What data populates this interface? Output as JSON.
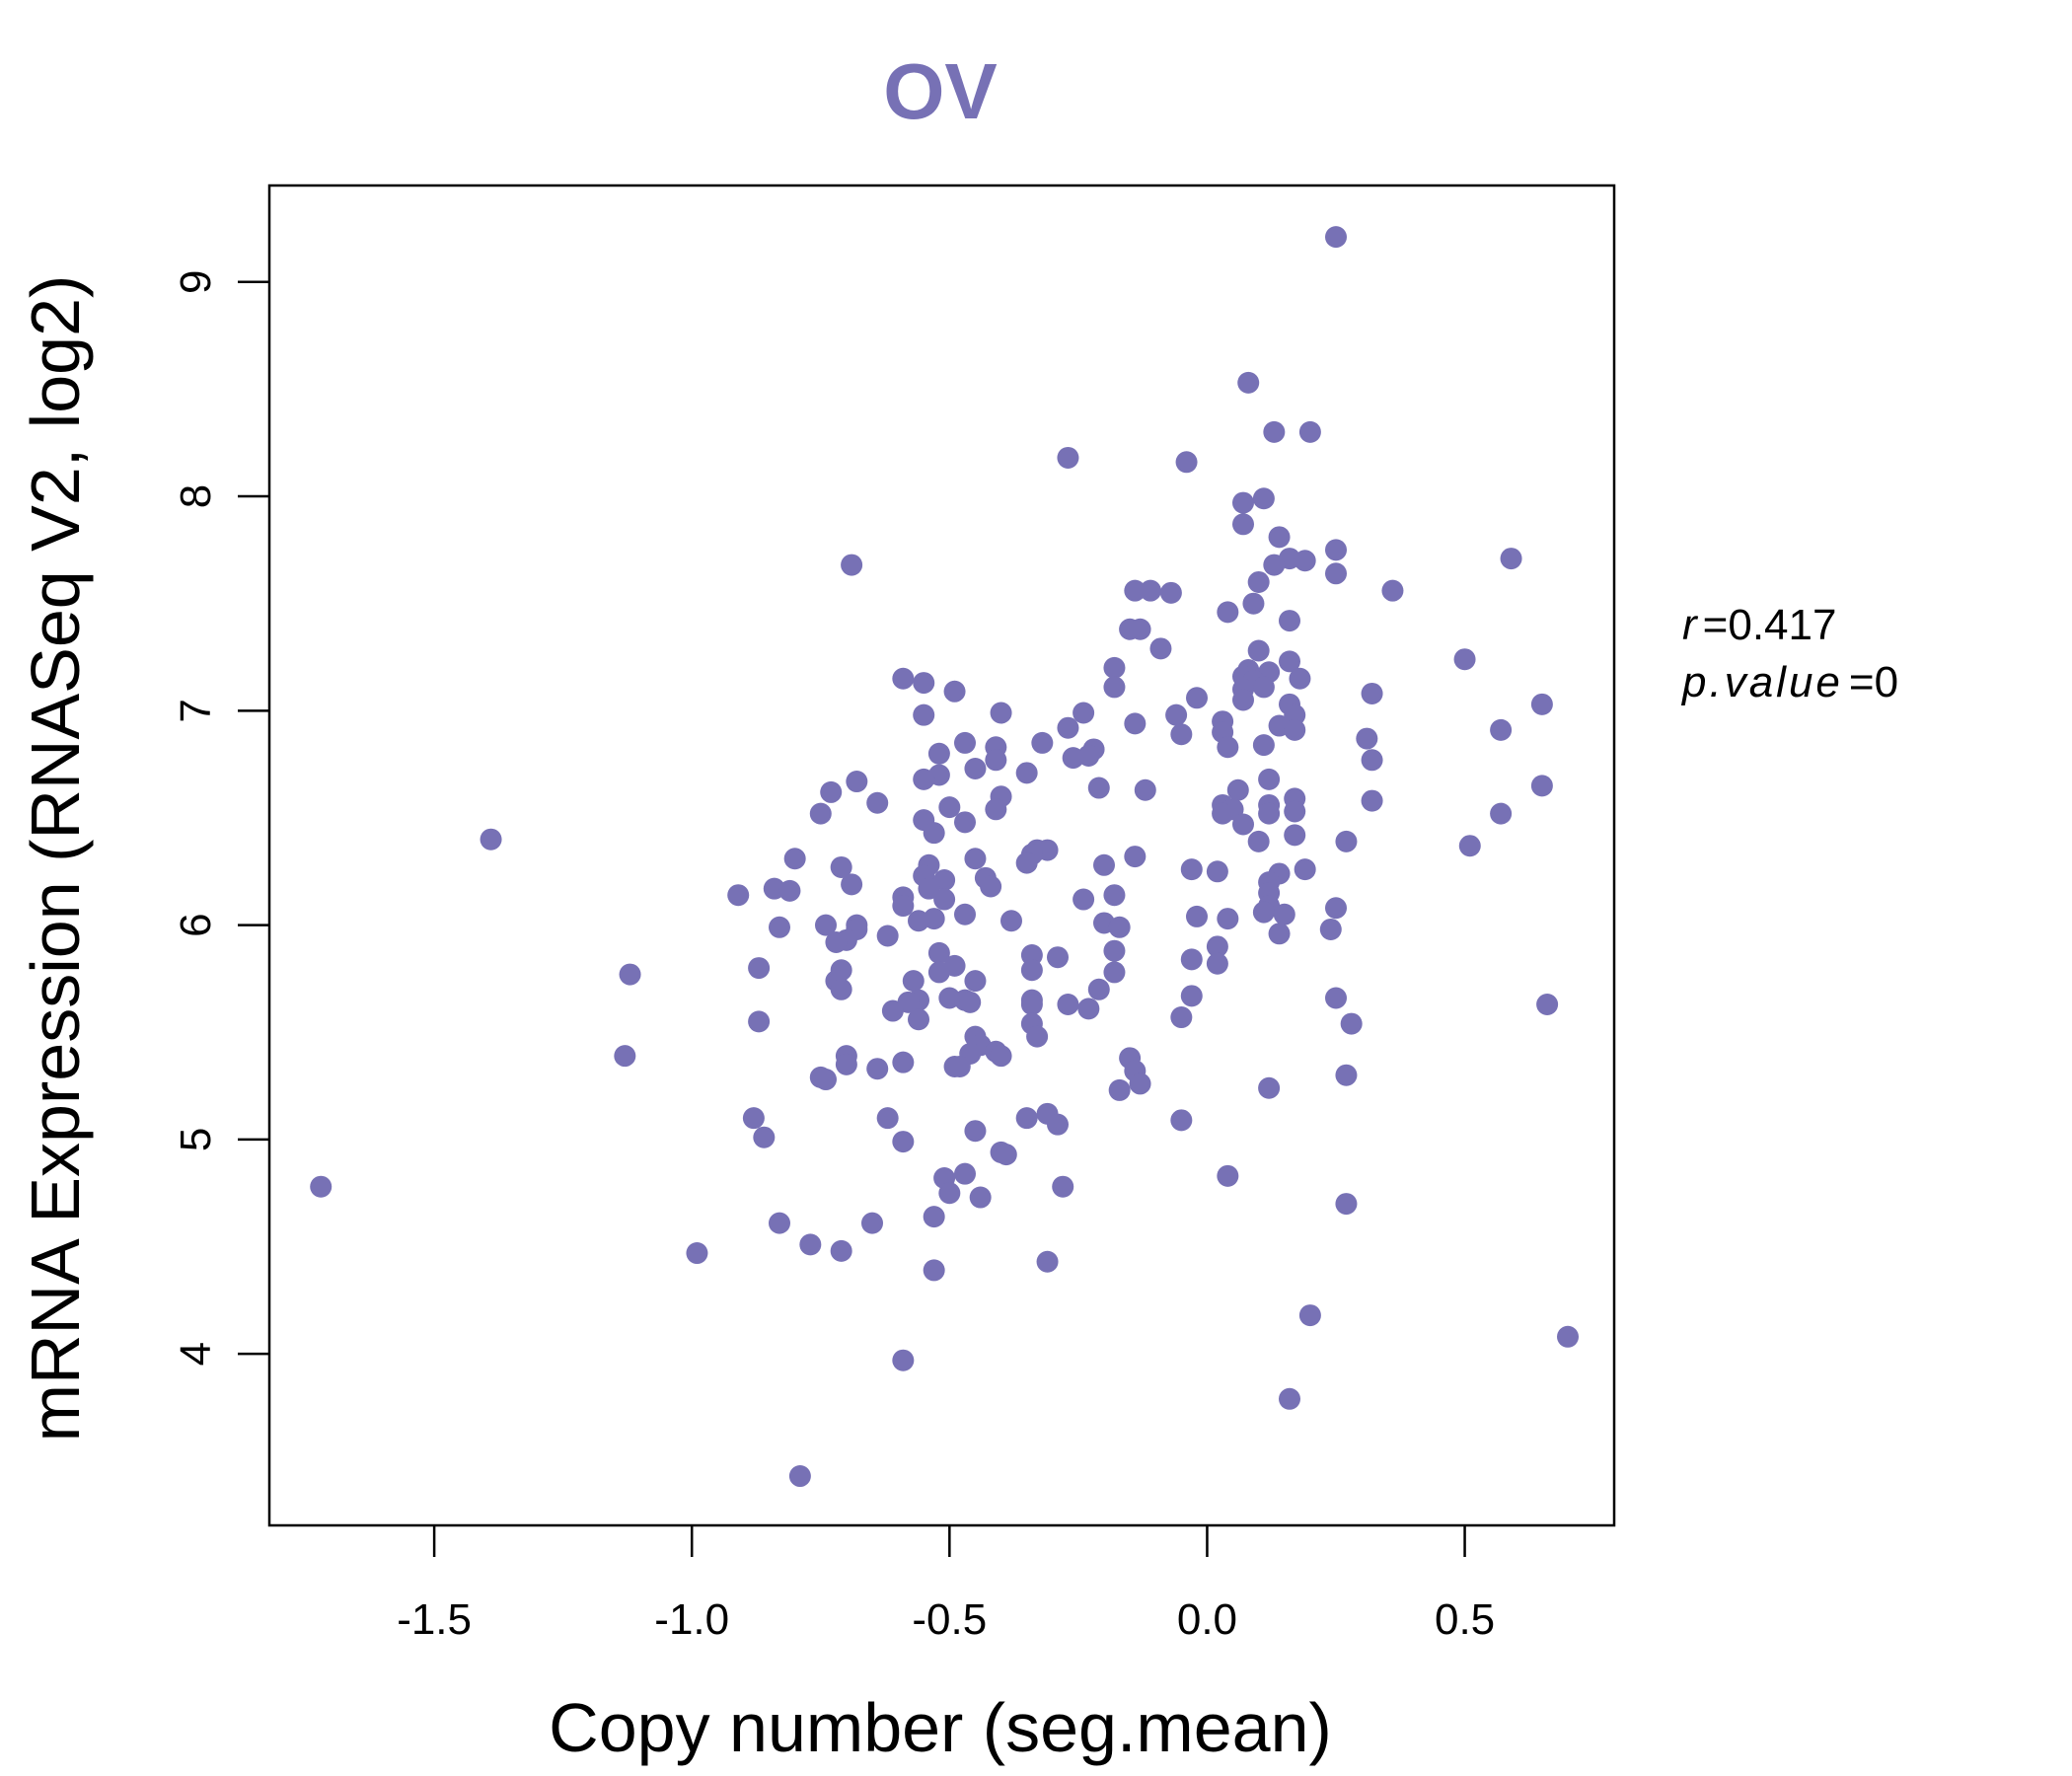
{
  "colors": {
    "accent": "#7771B5",
    "axis": "#000000",
    "background": "#ffffff"
  },
  "chart_data": {
    "type": "scatter",
    "title": "OV",
    "xlabel": "Copy number (seg.mean)",
    "ylabel": "mRNA Expression (RNASeq V2, log2)",
    "xlim": [
      -1.82,
      0.79
    ],
    "ylim": [
      3.2,
      9.45
    ],
    "x_ticks": [
      -1.5,
      -1.0,
      -0.5,
      0.0,
      0.5
    ],
    "x_tick_labels": [
      "-1.5",
      "-1.0",
      "-0.5",
      "0.0",
      "0.5"
    ],
    "y_ticks": [
      4,
      5,
      6,
      7,
      8,
      9
    ],
    "y_tick_labels": [
      "4",
      "5",
      "6",
      "7",
      "8",
      "9"
    ],
    "grid": false,
    "stats": {
      "r_label": "r",
      "r_value": "0.417",
      "p_label": "p.value",
      "p_value": "0"
    },
    "series": [
      {
        "points": [
          [
            0.25,
            9.21
          ],
          [
            0.08,
            8.53
          ],
          [
            0.13,
            8.3
          ],
          [
            0.2,
            8.3
          ],
          [
            -0.27,
            8.18
          ],
          [
            -0.04,
            8.16
          ],
          [
            0.11,
            7.99
          ],
          [
            0.07,
            7.97
          ],
          [
            0.07,
            7.87
          ],
          [
            0.14,
            7.81
          ],
          [
            0.25,
            7.75
          ],
          [
            0.16,
            7.71
          ],
          [
            0.19,
            7.7
          ],
          [
            0.59,
            7.71
          ],
          [
            -0.69,
            7.68
          ],
          [
            0.13,
            7.68
          ],
          [
            0.25,
            7.64
          ],
          [
            0.1,
            7.6
          ],
          [
            0.36,
            7.56
          ],
          [
            -0.14,
            7.56
          ],
          [
            -0.11,
            7.56
          ],
          [
            -0.07,
            7.55
          ],
          [
            0.09,
            7.5
          ],
          [
            0.04,
            7.46
          ],
          [
            0.16,
            7.42
          ],
          [
            -0.15,
            7.38
          ],
          [
            -0.13,
            7.38
          ],
          [
            -0.09,
            7.29
          ],
          [
            0.1,
            7.28
          ],
          [
            0.16,
            7.23
          ],
          [
            0.5,
            7.24
          ],
          [
            0.08,
            7.19
          ],
          [
            -0.18,
            7.2
          ],
          [
            0.12,
            7.18
          ],
          [
            0.07,
            7.16
          ],
          [
            0.18,
            7.15
          ],
          [
            -0.59,
            7.15
          ],
          [
            -0.55,
            7.13
          ],
          [
            0.09,
            7.14
          ],
          [
            -0.18,
            7.11
          ],
          [
            0.11,
            7.11
          ],
          [
            -0.49,
            7.09
          ],
          [
            0.07,
            7.1
          ],
          [
            0.32,
            7.08
          ],
          [
            -0.02,
            7.06
          ],
          [
            0.07,
            7.05
          ],
          [
            0.65,
            7.03
          ],
          [
            0.16,
            7.03
          ],
          [
            -0.24,
            6.99
          ],
          [
            -0.4,
            6.99
          ],
          [
            -0.55,
            6.98
          ],
          [
            0.17,
            6.98
          ],
          [
            -0.06,
            6.98
          ],
          [
            0.03,
            6.95
          ],
          [
            -0.14,
            6.94
          ],
          [
            0.14,
            6.93
          ],
          [
            -0.27,
            6.92
          ],
          [
            0.57,
            6.91
          ],
          [
            0.17,
            6.91
          ],
          [
            0.03,
            6.9
          ],
          [
            -0.05,
            6.89
          ],
          [
            0.31,
            6.87
          ],
          [
            -0.47,
            6.85
          ],
          [
            -0.32,
            6.85
          ],
          [
            0.11,
            6.84
          ],
          [
            0.04,
            6.83
          ],
          [
            -0.41,
            6.83
          ],
          [
            -0.22,
            6.82
          ],
          [
            -0.52,
            6.8
          ],
          [
            -0.23,
            6.79
          ],
          [
            -0.26,
            6.78
          ],
          [
            0.32,
            6.77
          ],
          [
            -0.41,
            6.77
          ],
          [
            -0.45,
            6.73
          ],
          [
            -0.35,
            6.71
          ],
          [
            -0.52,
            6.7
          ],
          [
            -0.55,
            6.68
          ],
          [
            0.12,
            6.68
          ],
          [
            -0.68,
            6.67
          ],
          [
            -0.21,
            6.64
          ],
          [
            0.06,
            6.63
          ],
          [
            -0.12,
            6.63
          ],
          [
            -0.73,
            6.62
          ],
          [
            0.65,
            6.65
          ],
          [
            0.17,
            6.59
          ],
          [
            -0.4,
            6.6
          ],
          [
            0.32,
            6.58
          ],
          [
            -0.64,
            6.57
          ],
          [
            0.03,
            6.56
          ],
          [
            -0.5,
            6.55
          ],
          [
            0.12,
            6.56
          ],
          [
            -0.41,
            6.54
          ],
          [
            0.05,
            6.54
          ],
          [
            0.17,
            6.53
          ],
          [
            0.57,
            6.52
          ],
          [
            0.12,
            6.52
          ],
          [
            -0.75,
            6.52
          ],
          [
            0.03,
            6.52
          ],
          [
            -0.55,
            6.49
          ],
          [
            -0.47,
            6.48
          ],
          [
            0.07,
            6.47
          ],
          [
            -0.53,
            6.43
          ],
          [
            0.17,
            6.42
          ],
          [
            0.1,
            6.39
          ],
          [
            0.27,
            6.39
          ],
          [
            0.51,
            6.37
          ],
          [
            -0.33,
            6.35
          ],
          [
            -0.31,
            6.35
          ],
          [
            -0.34,
            6.33
          ],
          [
            -0.14,
            6.32
          ],
          [
            -0.45,
            6.31
          ],
          [
            -0.8,
            6.31
          ],
          [
            -0.35,
            6.29
          ],
          [
            -0.2,
            6.28
          ],
          [
            -0.54,
            6.28
          ],
          [
            -0.71,
            6.27
          ],
          [
            0.19,
            6.26
          ],
          [
            -0.03,
            6.26
          ],
          [
            0.02,
            6.25
          ],
          [
            0.14,
            6.24
          ],
          [
            -0.55,
            6.23
          ],
          [
            -0.43,
            6.22
          ],
          [
            -0.51,
            6.21
          ],
          [
            0.12,
            6.2
          ],
          [
            -0.69,
            6.19
          ],
          [
            -0.42,
            6.18
          ],
          [
            -0.54,
            6.17
          ],
          [
            -0.84,
            6.17
          ],
          [
            -0.81,
            6.16
          ],
          [
            0.12,
            6.15
          ],
          [
            -0.18,
            6.14
          ],
          [
            -0.91,
            6.14
          ],
          [
            -0.59,
            6.13
          ],
          [
            -0.51,
            6.12
          ],
          [
            -0.24,
            6.12
          ],
          [
            0.12,
            6.09
          ],
          [
            -0.59,
            6.09
          ],
          [
            0.25,
            6.08
          ],
          [
            0.11,
            6.06
          ],
          [
            0.15,
            6.05
          ],
          [
            -0.47,
            6.05
          ],
          [
            -0.02,
            6.04
          ],
          [
            0.04,
            6.03
          ],
          [
            -0.53,
            6.03
          ],
          [
            -0.56,
            6.02
          ],
          [
            -0.38,
            6.02
          ],
          [
            -0.2,
            6.01
          ],
          [
            -0.68,
            6.0
          ],
          [
            -0.74,
            6.0
          ],
          [
            -0.83,
            5.99
          ],
          [
            -0.17,
            5.99
          ],
          [
            -0.68,
            5.98
          ],
          [
            0.24,
            5.98
          ],
          [
            0.14,
            5.96
          ],
          [
            -0.62,
            5.95
          ],
          [
            -0.7,
            5.93
          ],
          [
            -0.72,
            5.92
          ],
          [
            0.02,
            5.9
          ],
          [
            -0.18,
            5.88
          ],
          [
            -0.52,
            5.87
          ],
          [
            -0.34,
            5.86
          ],
          [
            -0.29,
            5.85
          ],
          [
            -0.03,
            5.84
          ],
          [
            0.02,
            5.82
          ],
          [
            -0.49,
            5.81
          ],
          [
            -0.87,
            5.8
          ],
          [
            -0.34,
            5.79
          ],
          [
            -0.71,
            5.79
          ],
          [
            -0.18,
            5.78
          ],
          [
            -0.52,
            5.78
          ],
          [
            -1.12,
            5.77
          ],
          [
            -0.57,
            5.74
          ],
          [
            -0.45,
            5.74
          ],
          [
            -0.72,
            5.74
          ],
          [
            -0.21,
            5.7
          ],
          [
            -0.71,
            5.7
          ],
          [
            -0.03,
            5.67
          ],
          [
            0.25,
            5.66
          ],
          [
            -0.5,
            5.66
          ],
          [
            -0.56,
            5.65
          ],
          [
            -0.47,
            5.65
          ],
          [
            -0.34,
            5.65
          ],
          [
            -0.58,
            5.64
          ],
          [
            -0.46,
            5.64
          ],
          [
            -0.34,
            5.63
          ],
          [
            -0.27,
            5.63
          ],
          [
            0.66,
            5.63
          ],
          [
            -0.23,
            5.61
          ],
          [
            -0.61,
            5.6
          ],
          [
            -0.05,
            5.57
          ],
          [
            -0.56,
            5.56
          ],
          [
            -0.87,
            5.55
          ],
          [
            0.28,
            5.54
          ],
          [
            -0.34,
            5.54
          ],
          [
            -0.33,
            5.48
          ],
          [
            -0.45,
            5.48
          ],
          [
            -0.44,
            5.44
          ],
          [
            -0.41,
            5.41
          ],
          [
            -0.46,
            5.4
          ],
          [
            -0.4,
            5.39
          ],
          [
            -0.7,
            5.39
          ],
          [
            -1.13,
            5.39
          ],
          [
            -0.15,
            5.38
          ],
          [
            -0.59,
            5.36
          ],
          [
            -0.7,
            5.35
          ],
          [
            -0.49,
            5.34
          ],
          [
            -0.48,
            5.34
          ],
          [
            -0.64,
            5.33
          ],
          [
            -0.14,
            5.32
          ],
          [
            0.27,
            5.3
          ],
          [
            -0.75,
            5.29
          ],
          [
            -0.74,
            5.28
          ],
          [
            -0.13,
            5.26
          ],
          [
            0.12,
            5.24
          ],
          [
            -0.17,
            5.23
          ],
          [
            -0.31,
            5.12
          ],
          [
            -0.35,
            5.1
          ],
          [
            -0.62,
            5.1
          ],
          [
            -0.05,
            5.09
          ],
          [
            -0.88,
            5.1
          ],
          [
            -0.29,
            5.07
          ],
          [
            -0.45,
            5.04
          ],
          [
            -0.86,
            5.01
          ],
          [
            -0.59,
            4.99
          ],
          [
            -0.4,
            4.94
          ],
          [
            -0.39,
            4.93
          ],
          [
            0.04,
            4.83
          ],
          [
            -0.47,
            4.84
          ],
          [
            -0.51,
            4.82
          ],
          [
            -0.28,
            4.78
          ],
          [
            -1.72,
            4.78
          ],
          [
            -0.5,
            4.75
          ],
          [
            -0.44,
            4.73
          ],
          [
            0.27,
            4.7
          ],
          [
            -0.53,
            4.64
          ],
          [
            -0.65,
            4.61
          ],
          [
            -0.83,
            4.61
          ],
          [
            -0.77,
            4.51
          ],
          [
            -0.71,
            4.48
          ],
          [
            -0.99,
            4.47
          ],
          [
            -0.31,
            4.43
          ],
          [
            -0.53,
            4.39
          ],
          [
            0.2,
            4.18
          ],
          [
            0.7,
            4.08
          ],
          [
            -0.59,
            3.97
          ],
          [
            0.16,
            3.79
          ],
          [
            -0.79,
            3.43
          ],
          [
            -1.39,
            6.4
          ]
        ]
      }
    ]
  }
}
